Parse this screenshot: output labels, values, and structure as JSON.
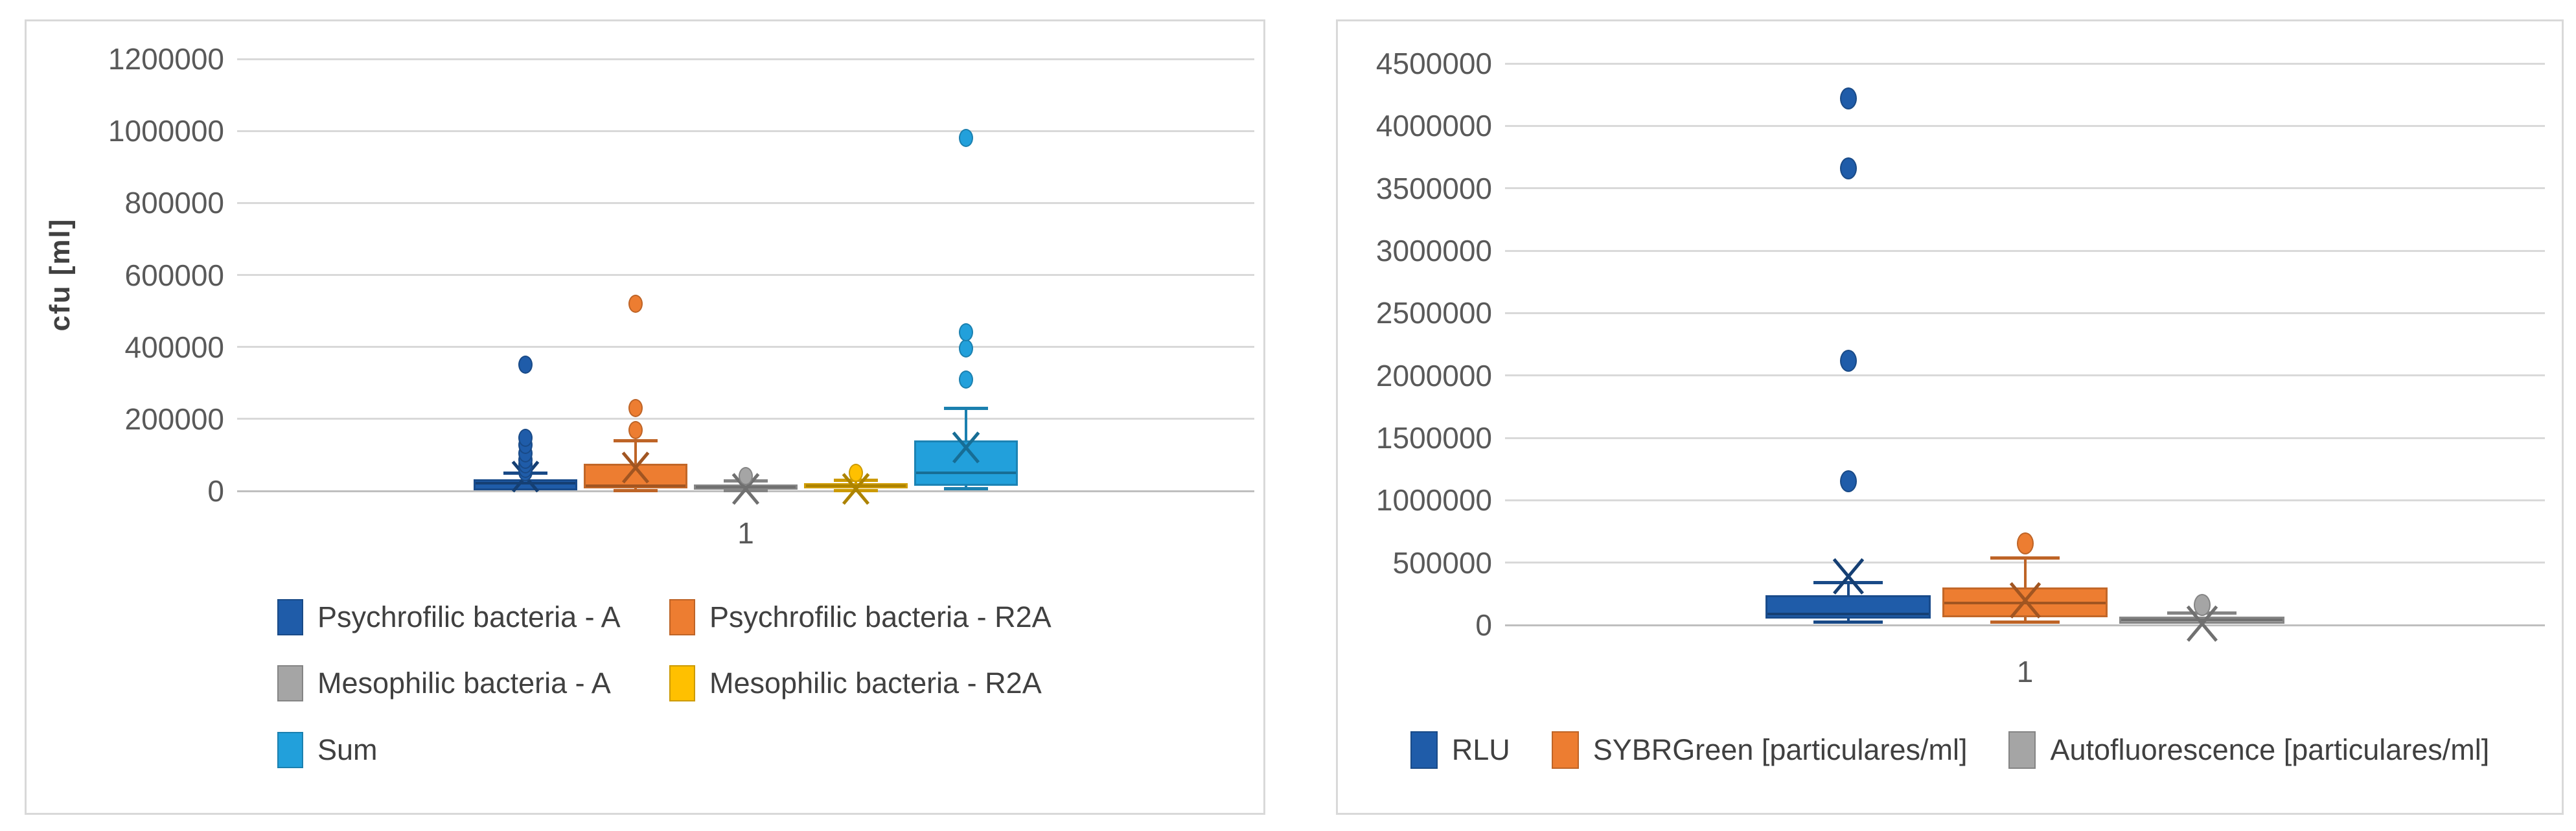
{
  "colors": {
    "background": "#FFFFFF",
    "panel_border": "#D9D9D9",
    "gridline": "#D9D9D9",
    "axis_line": "#BFBFBF",
    "tick_text": "#595959",
    "legend_text": "#404040",
    "series_blue": "#1F5CA9",
    "series_orange": "#ED7D31",
    "series_gray": "#A5A5A5",
    "series_yellow": "#FFC000",
    "series_lightblue": "#22A0DB"
  },
  "chart_data": [
    {
      "type": "boxplot",
      "panel": "left",
      "title": "",
      "ylabel": "cfu [ml]",
      "x_categories": [
        "1"
      ],
      "y_axis": {
        "min": 0,
        "max": 1200000,
        "step": 200000,
        "tick_labels": [
          "0",
          "200000",
          "400000",
          "600000",
          "800000",
          "1000000",
          "1200000"
        ]
      },
      "grid": true,
      "legend_position": "bottom-two-columns",
      "series": [
        {
          "name": "Psychrofilic bacteria - A",
          "color": "#1F5CA9",
          "box": {
            "q1": 2000,
            "median": 22000,
            "q3": 33000,
            "whisker_low": 2000,
            "whisker_high": 50000,
            "mean": 40000
          },
          "outliers": [
            52000,
            62000,
            74000,
            86000,
            105000,
            128000,
            148000,
            350000
          ]
        },
        {
          "name": "Psychrofilic bacteria - R2A",
          "color": "#ED7D31",
          "box": {
            "q1": 8000,
            "median": 15000,
            "q3": 75000,
            "whisker_low": 2000,
            "whisker_high": 140000,
            "mean": 65000
          },
          "outliers": [
            170000,
            230000,
            520000
          ]
        },
        {
          "name": "Mesophilic bacteria - A",
          "color": "#A5A5A5",
          "box": {
            "q1": 3000,
            "median": 10000,
            "q3": 18000,
            "whisker_low": 1000,
            "whisker_high": 28000,
            "mean": 5000
          },
          "outliers": [
            42000
          ]
        },
        {
          "name": "Mesophilic bacteria - R2A",
          "color": "#FFC000",
          "box": {
            "q1": 7000,
            "median": 14000,
            "q3": 22000,
            "whisker_low": 2000,
            "whisker_high": 30000,
            "mean": 5000
          },
          "outliers": [
            50000
          ]
        },
        {
          "name": "Sum",
          "color": "#22A0DB",
          "box": {
            "q1": 15000,
            "median": 50000,
            "q3": 140000,
            "whisker_low": 8000,
            "whisker_high": 230000,
            "mean": 120000
          },
          "outliers": [
            310000,
            395000,
            440000,
            980000
          ]
        }
      ]
    },
    {
      "type": "boxplot",
      "panel": "right",
      "title": "",
      "ylabel": "",
      "x_categories": [
        "1"
      ],
      "y_axis": {
        "min": 0,
        "max": 4500000,
        "step": 500000,
        "tick_labels": [
          "0",
          "500000",
          "1000000",
          "1500000",
          "2000000",
          "2500000",
          "3000000",
          "3500000",
          "4000000",
          "4500000"
        ]
      },
      "grid": true,
      "legend_position": "bottom-row",
      "series": [
        {
          "name": "RLU",
          "color": "#1F5CA9",
          "box": {
            "q1": 50000,
            "median": 88000,
            "q3": 240000,
            "whisker_low": 25000,
            "whisker_high": 340000,
            "mean": 390000
          },
          "outliers": [
            1150000,
            2120000,
            3660000,
            4220000
          ]
        },
        {
          "name": "SYBRGreen [particulares/ml]",
          "color": "#ED7D31",
          "box": {
            "q1": 60000,
            "median": 176000,
            "q3": 300000,
            "whisker_low": 26000,
            "whisker_high": 540000,
            "mean": 195000
          },
          "outliers": [
            655000
          ]
        },
        {
          "name": "Autofluorescence [particulares/ml]",
          "color": "#A5A5A5",
          "box": {
            "q1": 10000,
            "median": 40000,
            "q3": 70000,
            "whisker_low": 10000,
            "whisker_high": 100000,
            "mean": 10000
          },
          "outliers": [
            160000
          ]
        }
      ]
    }
  ]
}
